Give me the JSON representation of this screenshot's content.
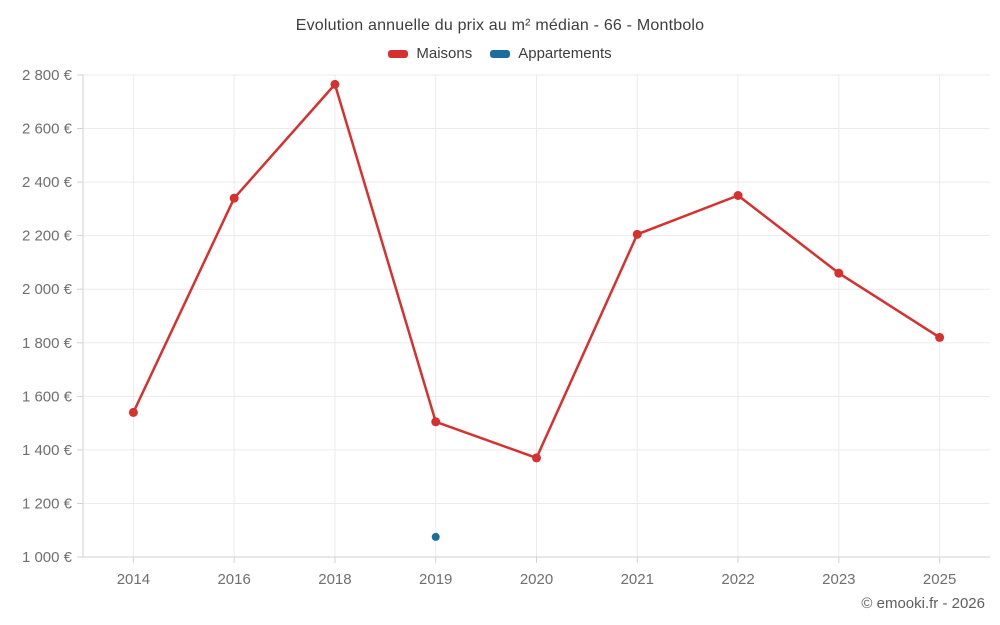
{
  "header": {
    "title": "Evolution annuelle du prix au m² médian - 66 - Montbolo"
  },
  "legend": {
    "items": [
      {
        "id": "maisons",
        "label": "Maisons",
        "color": "#d7312f"
      },
      {
        "id": "appartements",
        "label": "Appartements",
        "color": "#1b6d9d"
      }
    ]
  },
  "footer": {
    "credit": "© emooki.fr - 2026"
  },
  "chart_data": {
    "type": "line",
    "title": "Evolution annuelle du prix au m² médian - 66 - Montbolo",
    "categories": [
      "2014",
      "2016",
      "2018",
      "2019",
      "2020",
      "2021",
      "2022",
      "2023",
      "2025"
    ],
    "series": [
      {
        "name": "Maisons",
        "color": "#d7312f",
        "marker_radius": 4.5,
        "line_width": 2.5,
        "values": [
          1540,
          2340,
          2765,
          1505,
          1370,
          2205,
          2350,
          2060,
          1820
        ]
      },
      {
        "name": "Appartements",
        "color": "#1b6d9d",
        "marker_radius": 4,
        "line_width": 2.5,
        "values": [
          null,
          null,
          null,
          1075,
          null,
          null,
          null,
          null,
          null
        ]
      }
    ],
    "xlabel": "",
    "ylabel": "",
    "ylim": [
      1000,
      2800
    ],
    "ytick_step": 200,
    "ytick_labels": [
      "1 000 €",
      "1 200 €",
      "1 400 €",
      "1 600 €",
      "1 800 €",
      "2 000 €",
      "2 200 €",
      "2 400 €",
      "2 600 €",
      "2 800 €"
    ],
    "grid": true,
    "legend_position": "top",
    "grid_color": "#ebebeb",
    "axis_color": "#d2d2d2",
    "tick_color": "#d2d2d2"
  }
}
